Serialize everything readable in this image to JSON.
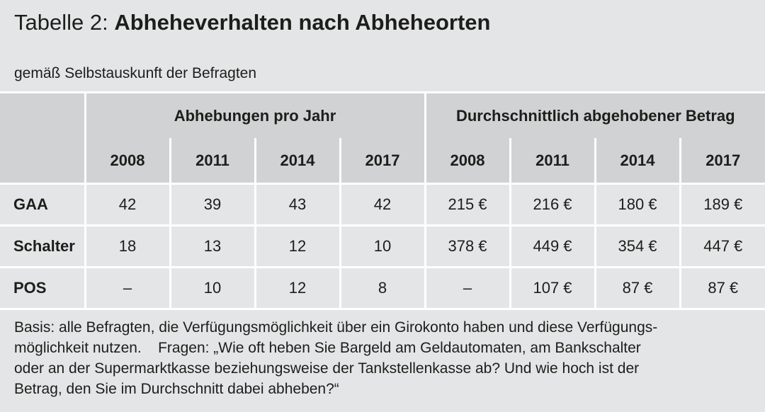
{
  "header": {
    "label": "Tabelle 2:",
    "title": "Abheheverhalten nach Abheheorten",
    "subtitle": "gemäß Selbstauskunft der Befragten"
  },
  "table": {
    "groups": [
      {
        "label": "Abhebungen pro Jahr",
        "years": [
          "2008",
          "2011",
          "2014",
          "2017"
        ]
      },
      {
        "label": "Durchschnittlich abgehobener Betrag",
        "years": [
          "2008",
          "2011",
          "2014",
          "2017"
        ]
      }
    ],
    "rows": [
      {
        "label": "GAA",
        "values": [
          "42",
          "39",
          "43",
          "42",
          "215 €",
          "216 €",
          "180 €",
          "189 €"
        ]
      },
      {
        "label": "Schalter",
        "values": [
          "18",
          "13",
          "12",
          "10",
          "378 €",
          "449 €",
          "354 €",
          "447 €"
        ]
      },
      {
        "label": "POS",
        "values": [
          "–",
          "10",
          "12",
          "8",
          "–",
          "107 €",
          "87 €",
          "87 €"
        ]
      }
    ]
  },
  "footnote": {
    "lines": [
      "Basis: alle Befragten, die Verfügungsmöglichkeit über ein Girokonto haben und diese Verfügungs-",
      "möglichkeit nutzen.    Fragen: „Wie oft heben Sie Bargeld am Geldautomaten, am Bankschalter",
      "oder an der Supermarktkasse beziehungsweise der Tankstellenkasse ab? Und wie hoch ist der",
      "Betrag, den Sie im Durchschnitt dabei abheben?“"
    ]
  }
}
